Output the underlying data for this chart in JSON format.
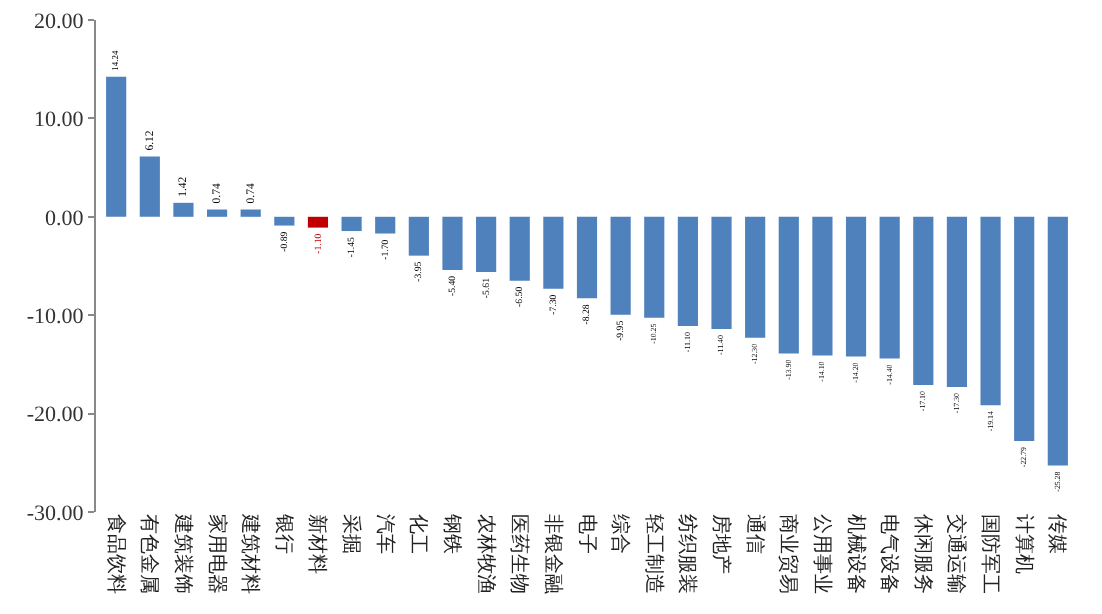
{
  "chart_data": {
    "type": "bar",
    "categories": [
      "食品饮料",
      "有色金属",
      "建筑装饰",
      "家用电器",
      "建筑材料",
      "银行",
      "新材料",
      "采掘",
      "汽车",
      "化工",
      "钢铁",
      "农林牧渔",
      "医药生物",
      "非银金融",
      "电子",
      "综合",
      "轻工制造",
      "纺织服装",
      "房地产",
      "通信",
      "商业贸易",
      "公用事业",
      "机械设备",
      "电气设备",
      "休闲服务",
      "交通运输",
      "国防军工",
      "计算机",
      "传媒"
    ],
    "values": [
      14.24,
      6.12,
      1.42,
      0.74,
      0.74,
      -0.89,
      -1.1,
      -1.45,
      -1.7,
      -3.95,
      -5.4,
      -5.61,
      -6.5,
      -7.3,
      -8.28,
      -9.95,
      -10.25,
      -11.1,
      -11.4,
      -12.3,
      -13.9,
      -14.1,
      -14.2,
      -14.4,
      -17.1,
      -17.3,
      -19.14,
      -22.79,
      -25.28
    ],
    "colors": [
      "#4f81bd",
      "#4f81bd",
      "#4f81bd",
      "#4f81bd",
      "#4f81bd",
      "#4f81bd",
      "#c00000",
      "#4f81bd",
      "#4f81bd",
      "#4f81bd",
      "#4f81bd",
      "#4f81bd",
      "#4f81bd",
      "#4f81bd",
      "#4f81bd",
      "#4f81bd",
      "#4f81bd",
      "#4f81bd",
      "#4f81bd",
      "#4f81bd",
      "#4f81bd",
      "#4f81bd",
      "#4f81bd",
      "#4f81bd",
      "#4f81bd",
      "#4f81bd",
      "#4f81bd",
      "#4f81bd",
      "#4f81bd"
    ],
    "ylim": [
      -30,
      20
    ],
    "yticks": [
      {
        "value": -30,
        "label": "-30.00"
      },
      {
        "value": -20,
        "label": "-20.00"
      },
      {
        "value": -10,
        "label": "-10.00"
      },
      {
        "value": 0,
        "label": "0.00"
      },
      {
        "value": 10,
        "label": "10.00"
      },
      {
        "value": 20,
        "label": "20.00"
      }
    ],
    "value_labels": [
      "14.24",
      "6.12",
      "1.42",
      "0.74",
      "0.74",
      "-0.89",
      "-1.10",
      "-1.45",
      "-1.70",
      "-3.95",
      "-5.40",
      "-5.61",
      "-6.50",
      "-7.30",
      "-8.28",
      "-9.95",
      "-10.25",
      "-11.10",
      "-11.40",
      "-12.30",
      "-13.90",
      "-14.10",
      "-14.20",
      "-14.40",
      "-17.10",
      "-17.30",
      "-19.14",
      "-22.79",
      "-25.28"
    ],
    "grid": false,
    "legend": false
  }
}
